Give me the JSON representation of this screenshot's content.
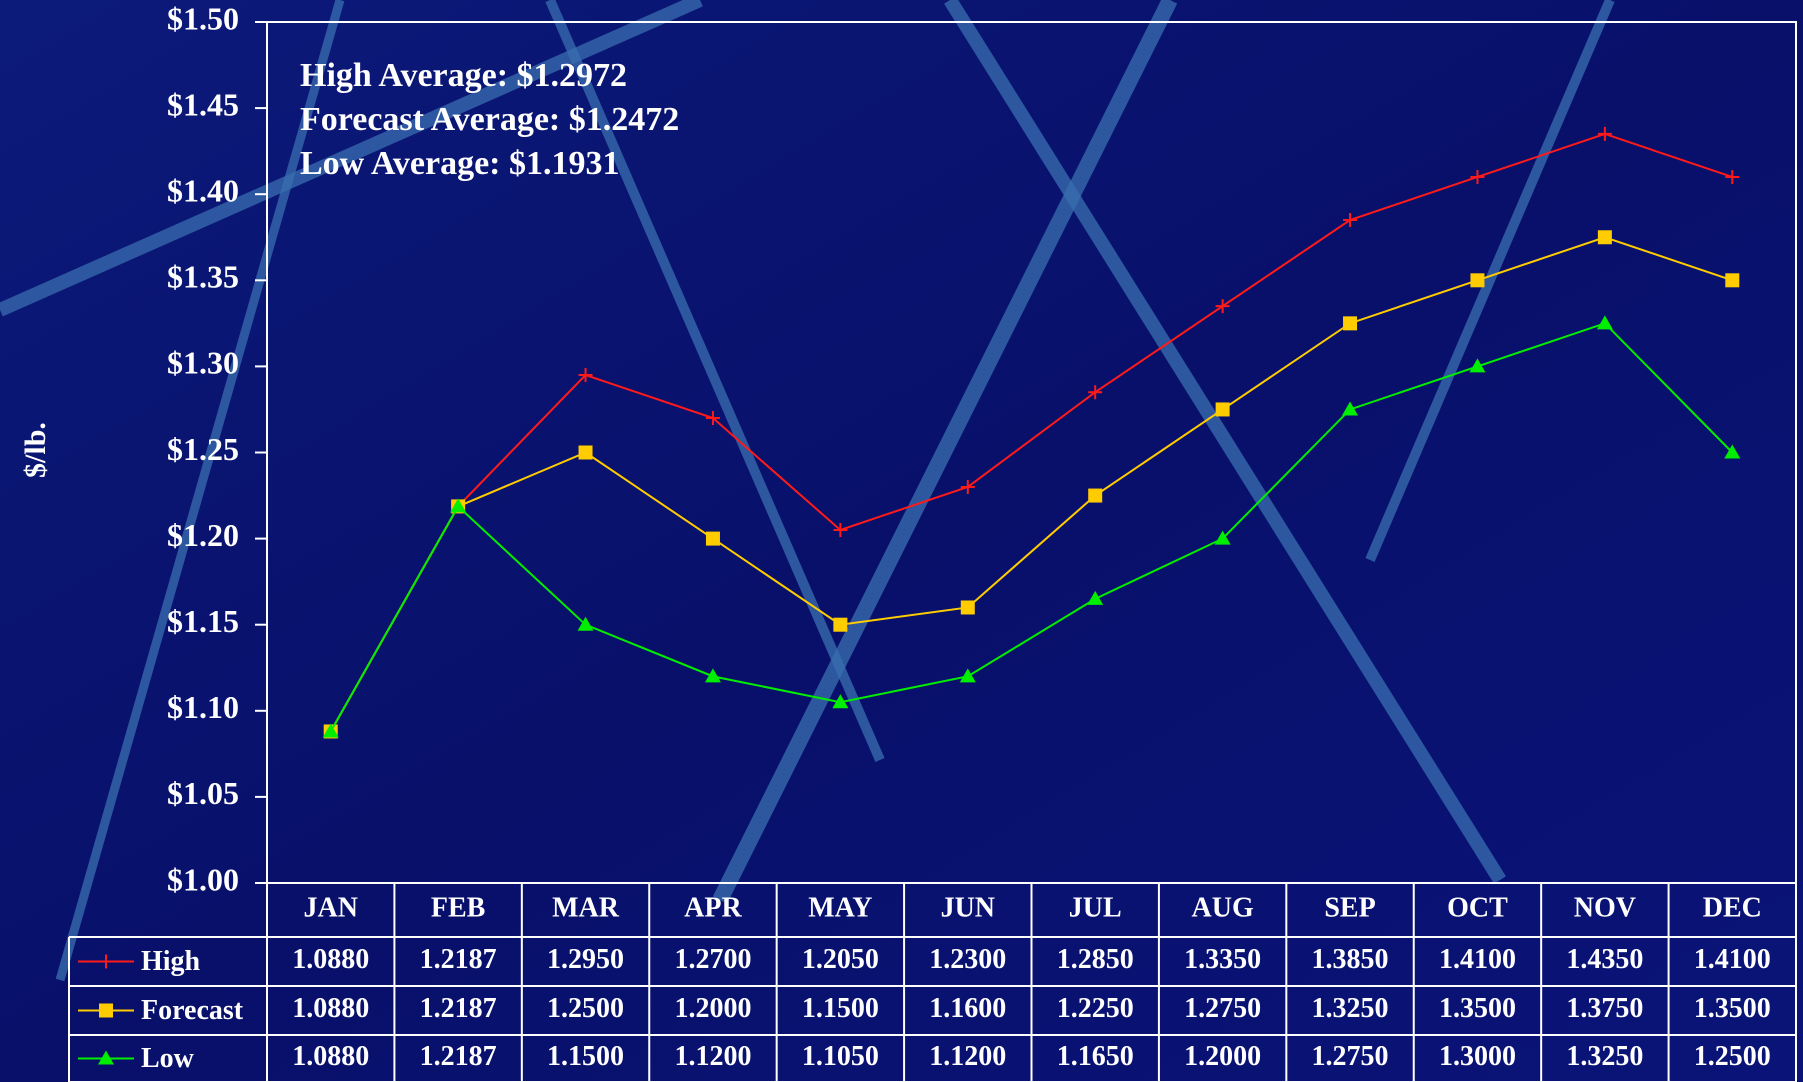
{
  "chart_data": {
    "type": "line",
    "y_label": "$/lb.",
    "annotations": [
      "High Average:  $1.2972",
      "Forecast Average:  $1.2472",
      "Low Average:  $1.1931"
    ],
    "categories": [
      "JAN",
      "FEB",
      "MAR",
      "APR",
      "MAY",
      "JUN",
      "JUL",
      "AUG",
      "SEP",
      "OCT",
      "NOV",
      "DEC"
    ],
    "series": [
      {
        "name": "High",
        "color": "#ff1a1a",
        "marker": "plus",
        "values": [
          1.088,
          1.2187,
          1.295,
          1.27,
          1.205,
          1.23,
          1.285,
          1.335,
          1.385,
          1.41,
          1.435,
          1.41
        ],
        "value_labels": [
          "1.0880",
          "1.2187",
          "1.2950",
          "1.2700",
          "1.2050",
          "1.2300",
          "1.2850",
          "1.3350",
          "1.3850",
          "1.4100",
          "1.4350",
          "1.4100"
        ]
      },
      {
        "name": "Forecast",
        "color": "#ffcc00",
        "marker": "square",
        "values": [
          1.088,
          1.2187,
          1.25,
          1.2,
          1.15,
          1.16,
          1.225,
          1.275,
          1.325,
          1.35,
          1.375,
          1.35
        ],
        "value_labels": [
          "1.0880",
          "1.2187",
          "1.2500",
          "1.2000",
          "1.1500",
          "1.1600",
          "1.2250",
          "1.2750",
          "1.3250",
          "1.3500",
          "1.3750",
          "1.3500"
        ]
      },
      {
        "name": "Low",
        "color": "#00ee00",
        "marker": "triangle",
        "values": [
          1.088,
          1.2187,
          1.15,
          1.12,
          1.105,
          1.12,
          1.165,
          1.2,
          1.275,
          1.3,
          1.325,
          1.25
        ],
        "value_labels": [
          "1.0880",
          "1.2187",
          "1.1500",
          "1.1200",
          "1.1050",
          "1.1200",
          "1.1650",
          "1.2000",
          "1.2750",
          "1.3000",
          "1.3250",
          "1.2500"
        ]
      }
    ],
    "ylim": [
      1.0,
      1.5
    ],
    "yticks": [
      {
        "value": 1.0,
        "label": "$1.00"
      },
      {
        "value": 1.05,
        "label": "$1.05"
      },
      {
        "value": 1.1,
        "label": "$1.10"
      },
      {
        "value": 1.15,
        "label": "$1.15"
      },
      {
        "value": 1.2,
        "label": "$1.20"
      },
      {
        "value": 1.25,
        "label": "$1.25"
      },
      {
        "value": 1.3,
        "label": "$1.30"
      },
      {
        "value": 1.35,
        "label": "$1.35"
      },
      {
        "value": 1.4,
        "label": "$1.40"
      },
      {
        "value": 1.45,
        "label": "$1.45"
      },
      {
        "value": 1.5,
        "label": "$1.50"
      }
    ],
    "data_table": true
  }
}
